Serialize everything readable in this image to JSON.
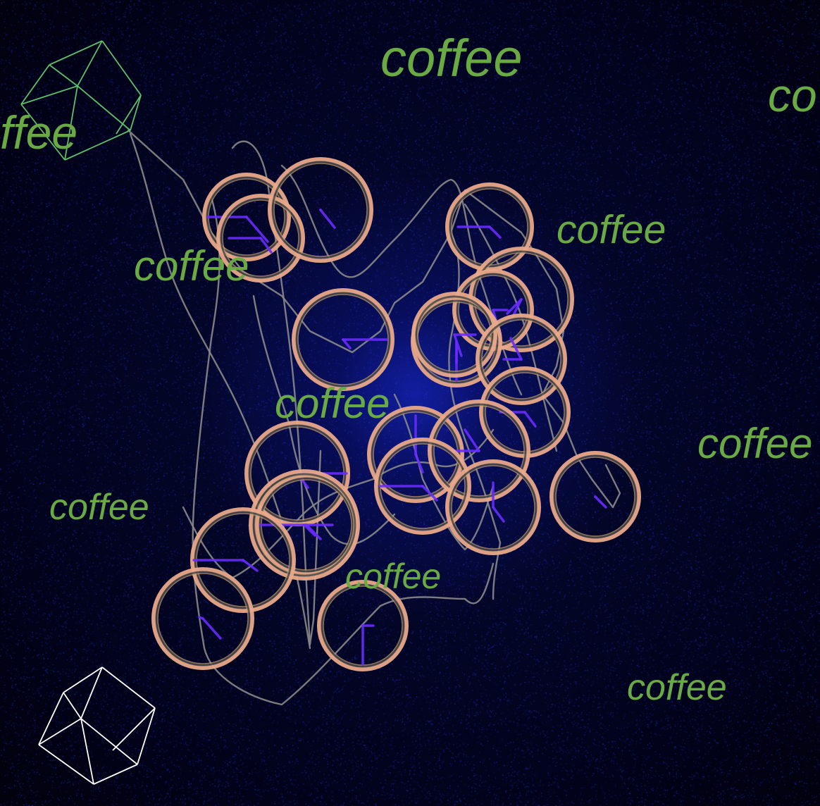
{
  "words": [
    "coffee",
    "coffee",
    "coffee",
    "coffee",
    "coffee",
    "coffee",
    "coffee",
    "coffee",
    "coffee",
    "ffee",
    "co"
  ],
  "colors": {
    "text": "#6aaa45",
    "ring_outer": "#e9a98a",
    "ring_inner": "#c8a071",
    "ring_dark": "#4a4a4a",
    "hand": "#6a2cff",
    "scribble": "#8a8a8a",
    "cube_top": "#5fbf6a",
    "cube_bottom": "#ffffff",
    "background_center": "#1420aa",
    "background_edge": "#010108"
  },
  "icons": [
    "cube-wireframe-icon",
    "cube-wireframe-icon"
  ]
}
